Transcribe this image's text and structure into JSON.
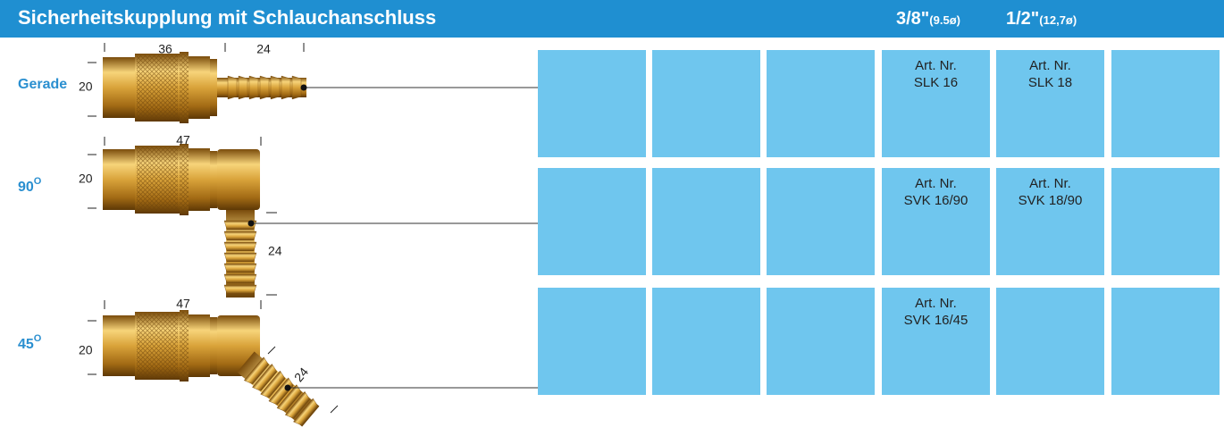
{
  "header": {
    "title": "Sicherheitskupplung mit Schlauchanschluss",
    "sizes": [
      {
        "size": "3/8\"",
        "diameter": "(9.5ø)"
      },
      {
        "size": "1/2\"",
        "diameter": "(12,7ø)"
      }
    ]
  },
  "rows": [
    {
      "label": "Gerade",
      "dimensions": {
        "length_body": "36",
        "length_tail": "24",
        "height": "20"
      },
      "cells": [
        null,
        null,
        null,
        {
          "line1": "Art. Nr.",
          "line2": "SLK 16"
        },
        {
          "line1": "Art. Nr.",
          "line2": "SLK 18"
        },
        null
      ]
    },
    {
      "label": "90",
      "degree": "O",
      "dimensions": {
        "length_body": "47",
        "height": "20",
        "length_tail": "24"
      },
      "cells": [
        null,
        null,
        null,
        {
          "line1": "Art. Nr.",
          "line2": "SVK 16/90"
        },
        {
          "line1": "Art. Nr.",
          "line2": "SVK 18/90"
        },
        null
      ]
    },
    {
      "label": "45",
      "degree": "O",
      "dimensions": {
        "length_body": "47",
        "height": "20",
        "length_tail": "24"
      },
      "cells": [
        null,
        null,
        null,
        {
          "line1": "Art. Nr.",
          "line2": "SVK 16/45"
        },
        null,
        null
      ]
    }
  ]
}
